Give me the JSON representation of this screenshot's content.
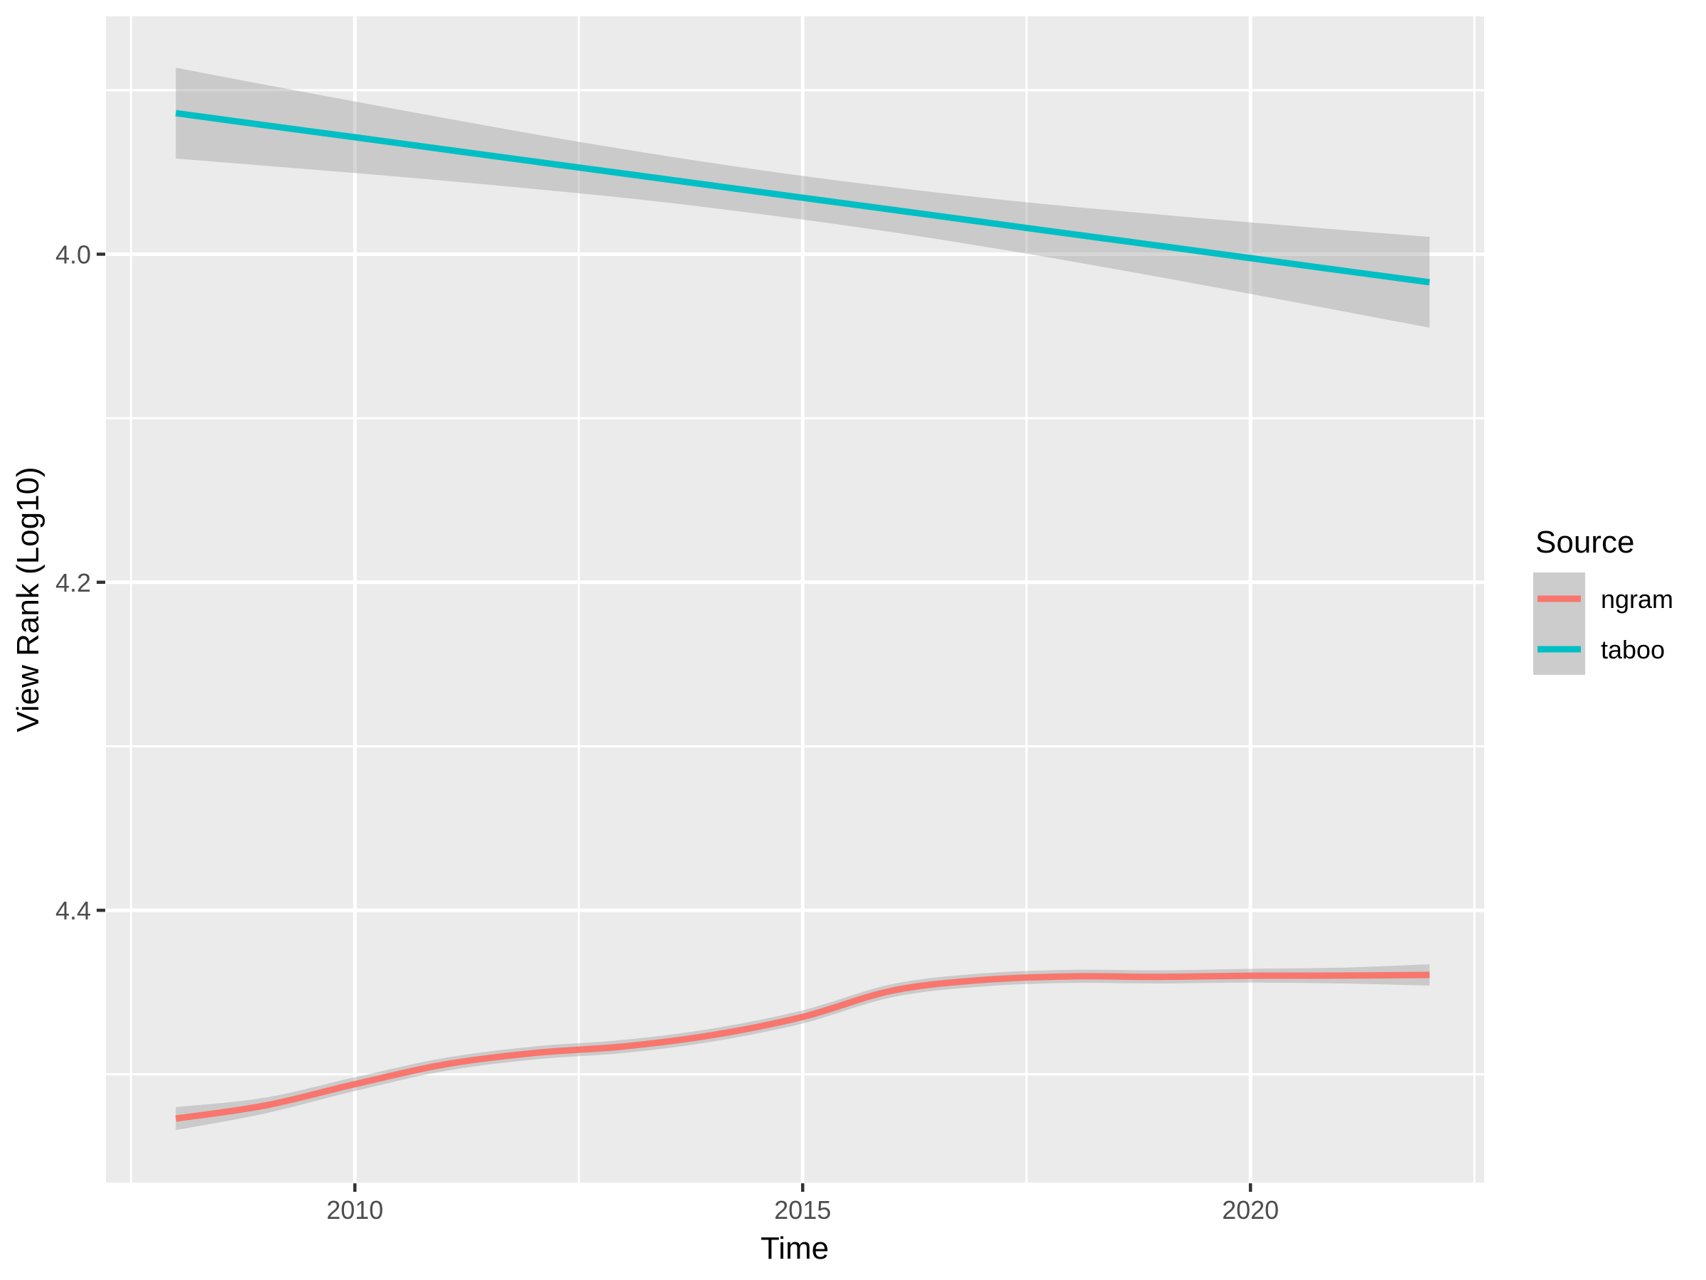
{
  "style": {
    "background": "#FFFFFF",
    "panel_bg": "#EBEBEB",
    "grid_color": "#FFFFFF",
    "ribbon_color": "#999999",
    "ribbon_opacity": 0.4,
    "axis_tick_color": "#333333",
    "tick_label_color": "#4D4D4D",
    "text_color": "#000000",
    "legend_key_bg": "#CCCCCC"
  },
  "legend": {
    "title": "Source",
    "items": [
      {
        "label": "ngram",
        "color": "#F8766D"
      },
      {
        "label": "taboo",
        "color": "#00BFC4"
      }
    ]
  },
  "chart_data": {
    "type": "line",
    "title": "",
    "xlabel": "Time",
    "ylabel": "View Rank (Log10)",
    "legend_position": "right",
    "grid": true,
    "y_axis_reversed": true,
    "x_range": [
      2007.22,
      2022.61
    ],
    "y_range_top_to_bottom": [
      3.855,
      4.566
    ],
    "x_ticks": [
      {
        "value": 2010,
        "label": "2010"
      },
      {
        "value": 2015,
        "label": "2015"
      },
      {
        "value": 2020,
        "label": "2020"
      }
    ],
    "y_ticks": [
      {
        "value": 4.0,
        "label": "4.0"
      },
      {
        "value": 4.2,
        "label": "4.2"
      },
      {
        "value": 4.4,
        "label": "4.4"
      }
    ],
    "x_minor_ticks": [
      2007.5,
      2012.5,
      2017.5,
      2022.5
    ],
    "y_minor_ticks": [
      3.9,
      4.1,
      4.3,
      4.5
    ],
    "x": [
      2008,
      2009,
      2010,
      2011,
      2012,
      2013,
      2014,
      2015,
      2016,
      2017,
      2018,
      2019,
      2020,
      2021,
      2022
    ],
    "series": [
      {
        "name": "ngram",
        "color": "#F8766D",
        "smoothing": "loess",
        "values": [
          4.527,
          4.519,
          4.506,
          4.494,
          4.487,
          4.483,
          4.476,
          4.465,
          4.449,
          4.4425,
          4.4403,
          4.4406,
          4.4399,
          4.4398,
          4.4394
        ],
        "ci_halfwidth": [
          0.007,
          0.0048,
          0.0042,
          0.004,
          0.004,
          0.004,
          0.004,
          0.004,
          0.004,
          0.004,
          0.004,
          0.004,
          0.0042,
          0.0048,
          0.0065
        ]
      },
      {
        "name": "taboo",
        "color": "#00BFC4",
        "smoothing": "lm",
        "values": [
          3.914,
          3.9214,
          3.9287,
          3.9361,
          3.9435,
          3.9508,
          3.9582,
          3.9656,
          3.9729,
          3.9803,
          3.9877,
          3.995,
          4.0024,
          4.0098,
          4.0171
        ],
        "ci_halfwidth": [
          0.0277,
          0.0247,
          0.0218,
          0.0191,
          0.0167,
          0.0148,
          0.0137,
          0.0133,
          0.0137,
          0.0148,
          0.0167,
          0.0191,
          0.0218,
          0.0247,
          0.0277
        ]
      }
    ]
  }
}
